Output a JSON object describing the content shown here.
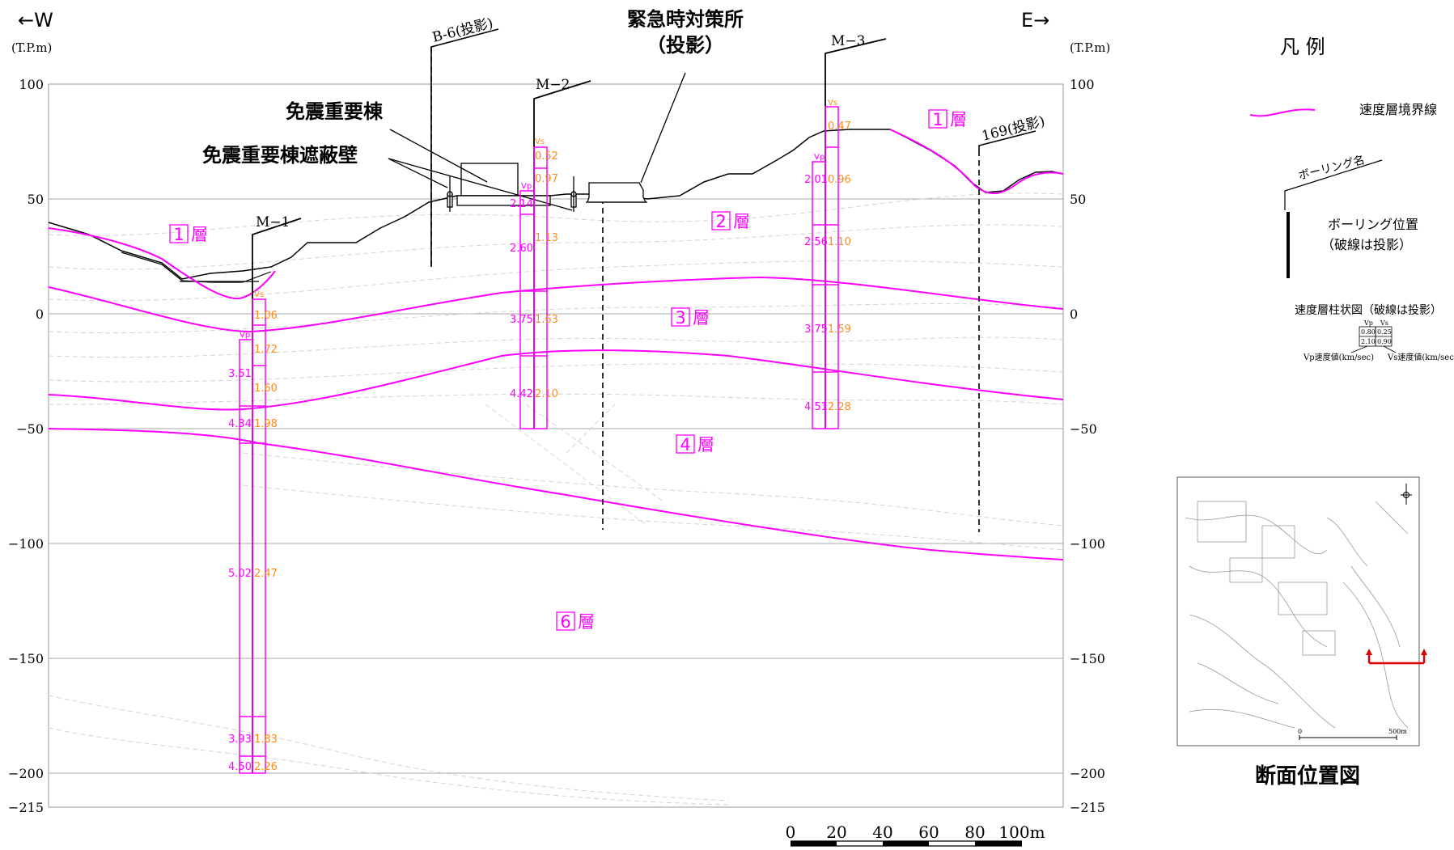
{
  "header": {
    "west": "←W",
    "east": "E→",
    "unit_left": "(T.P.m)",
    "unit_right": "(T.P.m)"
  },
  "y_axis": {
    "ticks": [
      "100",
      "50",
      "0",
      "−50",
      "−100",
      "−150",
      "−200",
      "−215"
    ]
  },
  "annotations": {
    "facility_1": "免震重要棟",
    "facility_2": "免震重要棟遮蔽壁",
    "facility_3_line1": "緊急時対策所",
    "facility_3_line2": "（投影）",
    "projection_b6": "B-6(投影)",
    "projection_169": "169(投影)"
  },
  "layers": [
    {
      "num": "1",
      "suffix": "層"
    },
    {
      "num": "1",
      "suffix": "層"
    },
    {
      "num": "2",
      "suffix": "層"
    },
    {
      "num": "3",
      "suffix": "層"
    },
    {
      "num": "4",
      "suffix": "層"
    },
    {
      "num": "6",
      "suffix": "層"
    }
  ],
  "boreholes": [
    {
      "name": "M−1",
      "vp_label": "Vp",
      "vs_label": "Vs",
      "vp": [
        "3.51",
        "4.34",
        "5.02",
        "3.93",
        "4.50"
      ],
      "vs": [
        "1.06",
        "1.72",
        "1.60",
        "1.98",
        "2.47",
        "1.83",
        "2.26"
      ]
    },
    {
      "name": "M−2",
      "vp_label": "Vp",
      "vs_label": "Vs",
      "vp": [
        "2.14",
        "2.60",
        "3.75",
        "4.42"
      ],
      "vs": [
        "0.52",
        "0.97",
        "1.13",
        "1.63",
        "2.10"
      ]
    },
    {
      "name": "M−3",
      "vp_label": "Vp",
      "vs_label": "Vs",
      "vp": [
        "2.01",
        "2.56",
        "3.75",
        "4.51"
      ],
      "vs": [
        "0.47",
        "0.96",
        "1.10",
        "1.59",
        "2.28"
      ]
    }
  ],
  "scale_bar": {
    "labels": [
      "0",
      "20",
      "40",
      "60",
      "80",
      "100m"
    ]
  },
  "legend": {
    "title": "凡 例",
    "velocity_boundary": "速度層境界線",
    "borehole_name": "ボーリング名",
    "borehole_position_1": "ボーリング位置",
    "borehole_position_2": "（破線は投影）",
    "column_title": "速度層柱状図（破線は投影）",
    "sample_vp_head": "Vp",
    "sample_vs_head": "Vs",
    "sample_vp": [
      "0.80",
      "2.10"
    ],
    "sample_vs": [
      "0.25",
      "0.90"
    ],
    "vp_desc": "Vp速度値(km/sec)",
    "vs_desc": "Vs速度値(km/sec)"
  },
  "inset_map": {
    "title": "断面位置図",
    "scale_start": "0",
    "scale_end": "500m"
  },
  "colors": {
    "boundary": "#ff00ff",
    "vs_value": "#ff8c1a",
    "section_marker": "#e00000"
  }
}
